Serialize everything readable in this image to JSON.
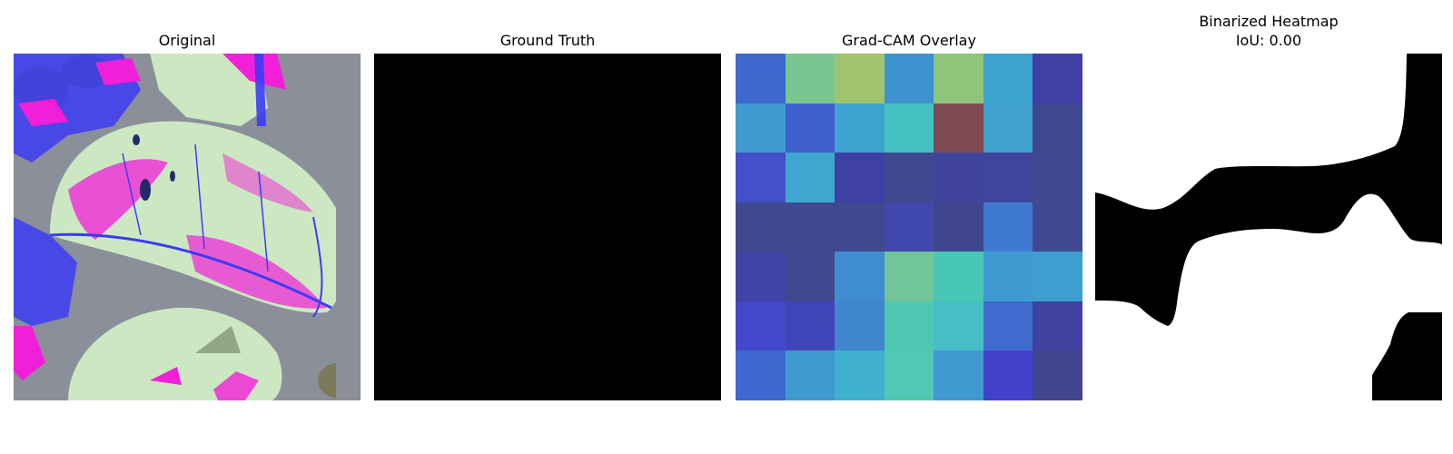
{
  "panels": {
    "original": {
      "title": "Original"
    },
    "ground_truth": {
      "title": "Ground Truth",
      "fill": "#000000"
    },
    "gradcam": {
      "title": "Grad-CAM Overlay",
      "cells": [
        [
          "#3f68cf",
          "#78c690",
          "#a0c46e",
          "#3e93cf",
          "#8ec57a",
          "#3ea3cf",
          "#3f3fa6"
        ],
        [
          "#3f9ad0",
          "#3f5fcf",
          "#3fa3cf",
          "#45c1c2",
          "#7e4a50",
          "#3fa1cf",
          "#3f4790"
        ],
        [
          "#4450c9",
          "#3fa7cf",
          "#3f40a4",
          "#404890",
          "#3f4399",
          "#3f459a",
          "#3f4891"
        ],
        [
          "#404890",
          "#404890",
          "#404890",
          "#4048ad",
          "#40468e",
          "#3f7ad0",
          "#404890"
        ],
        [
          "#3f44a6",
          "#404890",
          "#3f8dd0",
          "#70c59a",
          "#48c6b6",
          "#3f9ad0",
          "#3f9ed0"
        ],
        [
          "#4248c9",
          "#3f45b8",
          "#3f86cf",
          "#4fc7b3",
          "#45bec5",
          "#3f6bcf",
          "#3f42a0"
        ],
        [
          "#3f67cf",
          "#3f9ad0",
          "#3fb0cf",
          "#4fc8b4",
          "#3f9ad0",
          "#4340c9",
          "#40468e"
        ]
      ]
    },
    "binarized": {
      "title_line1": "Binarized Heatmap",
      "title_line2": "IoU: 0.00"
    }
  },
  "colors": {
    "black": "#000000",
    "white": "#ffffff",
    "leaf_pale": "#cce8c3",
    "magenta": "#f21fd8",
    "blue": "#3c3cf5",
    "background_gray": "#8a8f99"
  }
}
